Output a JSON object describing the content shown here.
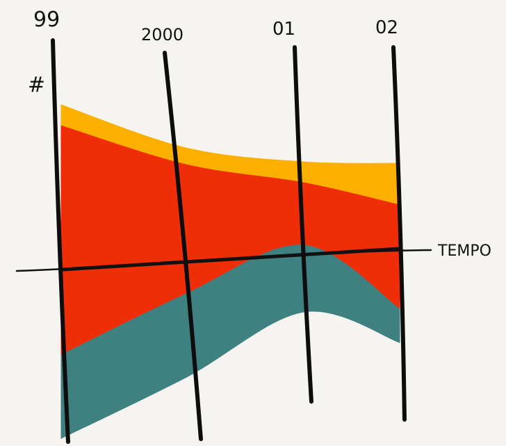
{
  "chart_data": {
    "type": "area",
    "subtype": "streamgraph",
    "title": "",
    "xlabel": "TEMPO",
    "ylabel": "#",
    "categories": [
      "99",
      "2000",
      "01",
      "02"
    ],
    "grid": false,
    "legend": "none",
    "series": [
      {
        "values": [
          0.5,
          0.4,
          0.5,
          1.0
        ],
        "color": "#fbb000"
      },
      {
        "values": [
          4.0,
          2.2,
          1.4,
          2.0
        ],
        "color": "#ef2e08"
      },
      {
        "values": [
          1.5,
          0.9,
          0.1,
          0.5
        ],
        "color": "#ef2e08"
      },
      {
        "values": [
          2.0,
          2.0,
          1.6,
          0.8
        ],
        "color": "#3f8180"
      }
    ],
    "baseline_offset": [
      -0.05,
      -0.0,
      0.4,
      -0.1
    ]
  }
}
